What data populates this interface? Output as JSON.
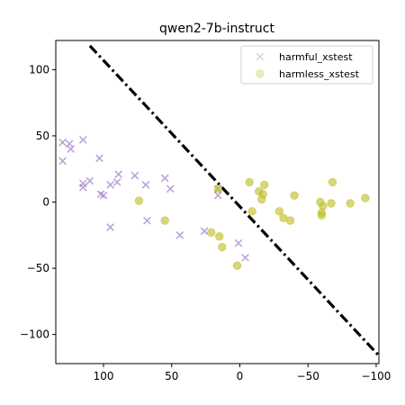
{
  "chart_data": {
    "type": "scatter",
    "title": "qwen2-7b-instruct",
    "xlabel": "",
    "ylabel": "",
    "xlim": [
      135,
      -102
    ],
    "ylim": [
      -122,
      122
    ],
    "x_inverted": true,
    "xticks": [
      100,
      50,
      0,
      -50,
      -100
    ],
    "yticks": [
      100,
      50,
      0,
      -50,
      -100
    ],
    "xtick_labels": [
      "100",
      "50",
      "0",
      "−50",
      "−100"
    ],
    "ytick_labels": [
      "100",
      "50",
      "0",
      "−50",
      "−100"
    ],
    "grid": false,
    "legend_position": "top-right",
    "series": [
      {
        "name": "harmful_xstest",
        "marker": "x",
        "color": "#9467bd",
        "points": [
          [
            130,
            45
          ],
          [
            125,
            44
          ],
          [
            124,
            40
          ],
          [
            130,
            31
          ],
          [
            115,
            47
          ],
          [
            115,
            14
          ],
          [
            115,
            11
          ],
          [
            110,
            16
          ],
          [
            103,
            33
          ],
          [
            102,
            6
          ],
          [
            100,
            5
          ],
          [
            95,
            13
          ],
          [
            90,
            15
          ],
          [
            89,
            21
          ],
          [
            95,
            -19
          ],
          [
            77,
            20
          ],
          [
            69,
            13
          ],
          [
            68,
            -14
          ],
          [
            55,
            18
          ],
          [
            51,
            10
          ],
          [
            44,
            -25
          ],
          [
            26,
            -22
          ],
          [
            16,
            5
          ],
          [
            16,
            10
          ],
          [
            1,
            -31
          ],
          [
            -4,
            -42
          ]
        ]
      },
      {
        "name": "harmless_xstest",
        "marker": "o",
        "color": "#bcbd22",
        "points": [
          [
            74,
            1
          ],
          [
            55,
            -14
          ],
          [
            21,
            -23
          ],
          [
            15,
            -26
          ],
          [
            13,
            -34
          ],
          [
            16,
            10
          ],
          [
            2,
            -48
          ],
          [
            -7,
            15
          ],
          [
            -9,
            -7
          ],
          [
            -14,
            8
          ],
          [
            -16,
            2
          ],
          [
            -18,
            13
          ],
          [
            -17,
            6
          ],
          [
            -29,
            -7
          ],
          [
            -32,
            -12
          ],
          [
            -37,
            -14
          ],
          [
            -40,
            5
          ],
          [
            -59,
            0
          ],
          [
            -60,
            -10
          ],
          [
            -61,
            -3
          ],
          [
            -60,
            -8
          ],
          [
            -67,
            -1
          ],
          [
            -68,
            15
          ],
          [
            -81,
            -1
          ],
          [
            -92,
            3
          ]
        ]
      }
    ],
    "reference_line": {
      "style": "dash-dot",
      "color": "#000000",
      "points": [
        [
          110,
          118
        ],
        [
          -102,
          -116
        ]
      ]
    }
  }
}
